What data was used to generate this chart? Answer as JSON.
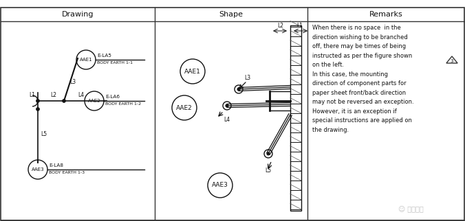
{
  "col_headers": [
    "Drawing",
    "Shape",
    "Remarks"
  ],
  "remarks_lines": [
    "When there is no space  in the",
    "direction wishing to be branched",
    "off, there may be times of being",
    "instructed as per the figure shown",
    "on the left.",
    "In this case, the mounting",
    "direction of component parts for",
    "paper sheet front/back direction",
    "may not be reversed an exception.",
    "However, it is an exception if",
    "special instructions are applied on",
    "the drawing."
  ],
  "watermark": "线束专家"
}
